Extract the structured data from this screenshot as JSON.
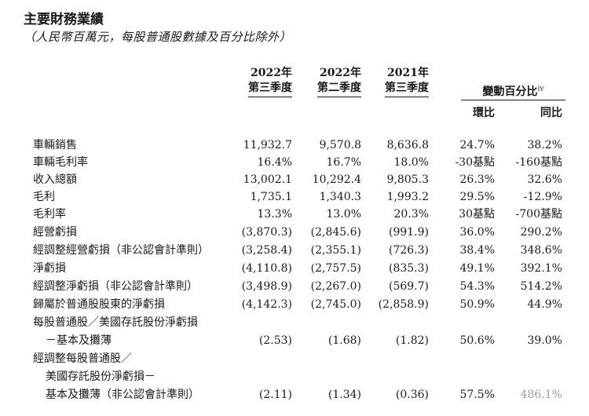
{
  "title": "主要財務業績",
  "subtitle": "（人民幣百萬元，每股普通股數據及百分比除外）",
  "headers": {
    "cols": [
      {
        "line1": "2022年",
        "line2": "第三季度"
      },
      {
        "line1": "2022年",
        "line2": "第二季度"
      },
      {
        "line1": "2021年",
        "line2": "第三季度"
      }
    ],
    "pct_change": "變動百分比",
    "pct_change_sup": "iv",
    "qoq": "環比",
    "yoy": "同比"
  },
  "rows": [
    {
      "label": "車輛銷售",
      "values": [
        "11,932.7",
        "9,570.8",
        "8,636.8",
        "24.7%",
        "38.2%"
      ]
    },
    {
      "label": "車輛毛利率",
      "values": [
        "16.4%",
        "16.7%",
        "18.0%",
        "-30基點",
        "-160基點"
      ]
    },
    {
      "label": "收入總額",
      "values": [
        "13,002.1",
        "10,292.4",
        "9,805.3",
        "26.3%",
        "32.6%"
      ]
    },
    {
      "label": "毛利",
      "values": [
        "1,735.1",
        "1,340.3",
        "1,993.2",
        "29.5%",
        "-12.9%"
      ]
    },
    {
      "label": "毛利率",
      "values": [
        "13.3%",
        "13.0%",
        "20.3%",
        "30基點",
        "-700基點"
      ]
    },
    {
      "label": "經營虧損",
      "values": [
        "(3,870.3)",
        "(2,845.6)",
        "(991.9)",
        "36.0%",
        "290.2%"
      ]
    },
    {
      "label": "經調整經營虧損（非公認會計準則）",
      "values": [
        "(3,258.4)",
        "(2,355.1)",
        "(726.3)",
        "38.4%",
        "348.6%"
      ]
    },
    {
      "label": "淨虧損",
      "values": [
        "(4,110.8)",
        "(2,757.5)",
        "(835.3)",
        "49.1%",
        "392.1%"
      ]
    },
    {
      "label": "經調整淨虧損（非公認會計準則）",
      "values": [
        "(3,498.9)",
        "(2,267.0)",
        "(569.7)",
        "54.3%",
        "514.2%"
      ]
    },
    {
      "label": "歸屬於普通股股東的淨虧損",
      "values": [
        "(4,142.3)",
        "(2,745.0)",
        "(2,858.9)",
        "50.9%",
        "44.9%"
      ]
    },
    {
      "label": "每股普通股／美國存託股份淨虧損",
      "values": [
        "",
        "",
        "",
        "",
        ""
      ]
    },
    {
      "label": "－基本及攤薄",
      "values": [
        "(2.53)",
        "(1.68)",
        "(1.82)",
        "50.6%",
        "39.0%"
      ]
    },
    {
      "label": "經調整每股普通股／",
      "values": [
        "",
        "",
        "",
        "",
        ""
      ]
    },
    {
      "label": "美國存託股份淨虧損－",
      "values": [
        "",
        "",
        "",
        "",
        ""
      ]
    },
    {
      "label": "基本及攤薄（非公認會計準則）",
      "values": [
        "(2.11)",
        "(1.34)",
        "(0.36)",
        "57.5%",
        "486.1%"
      ]
    }
  ]
}
